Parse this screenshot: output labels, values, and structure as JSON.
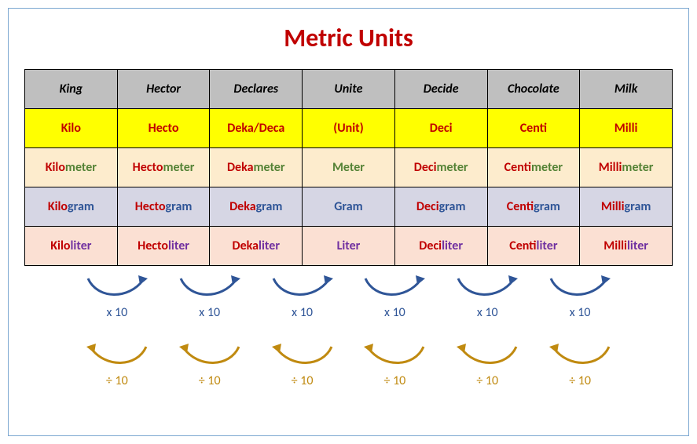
{
  "title": {
    "text": "Metric Units",
    "color": "#c00000",
    "fontsize": 32
  },
  "table": {
    "columns": 7,
    "rows": [
      {
        "type": "mnemonic",
        "bg": "#bfbfbf",
        "cells": [
          "King",
          "Hector",
          "Declares",
          "Unite",
          "Decide",
          "Chocolate",
          "Milk"
        ],
        "text_color": "#000000",
        "italic": true
      },
      {
        "type": "prefix",
        "bg": "#ffff00",
        "cells": [
          "Kilo",
          "Hecto",
          "Deka/Deca",
          "(Unit)",
          "Deci",
          "Centi",
          "Milli"
        ],
        "text_color": "#c00000"
      },
      {
        "type": "meter",
        "bg": "#fdeccd",
        "prefixes": [
          "Kilo",
          "Hecto",
          "Deka",
          "",
          "Deci",
          "Centi",
          "Milli"
        ],
        "unit": "meter",
        "unit_center": "Meter",
        "prefix_color": "#c00000",
        "unit_color": "#548235"
      },
      {
        "type": "gram",
        "bg": "#d6d6e4",
        "prefixes": [
          "Kilo",
          "Hecto",
          "Deka",
          "",
          "Deci",
          "Centi",
          "Milli"
        ],
        "unit": "gram",
        "unit_center": "Gram",
        "prefix_color": "#c00000",
        "unit_color": "#2f5597"
      },
      {
        "type": "liter",
        "bg": "#fbe0d3",
        "prefixes": [
          "Kilo",
          "Hecto",
          "Deka",
          "",
          "Deci",
          "Centi",
          "Milli"
        ],
        "unit": "liter",
        "unit_center": "Liter",
        "prefix_color": "#c00000",
        "unit_color": "#7030a0"
      }
    ]
  },
  "arrows": {
    "multiply": {
      "label": "x 10",
      "count": 6,
      "color": "#2f5597",
      "direction": "right"
    },
    "divide": {
      "label": "÷ 10",
      "count": 6,
      "color": "#c08a10",
      "direction": "left"
    }
  }
}
